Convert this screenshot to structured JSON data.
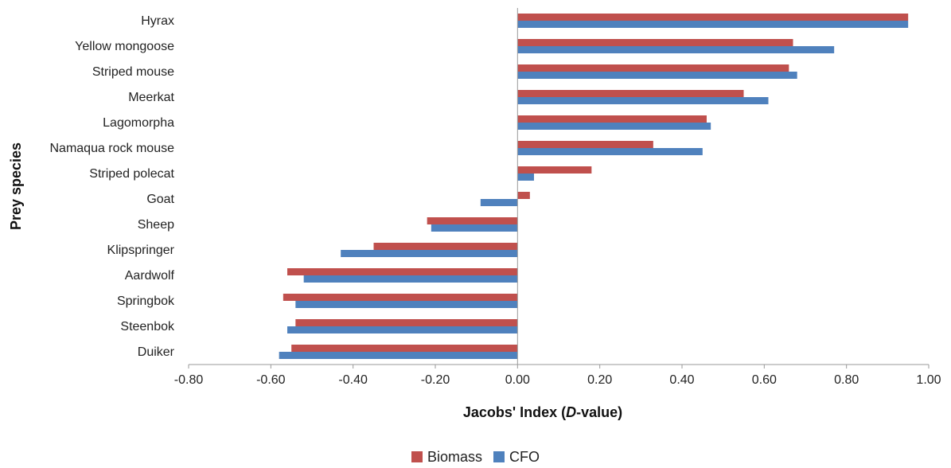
{
  "chart_data": {
    "type": "bar",
    "orientation": "horizontal",
    "categories": [
      "Hyrax",
      "Yellow mongoose",
      "Striped mouse",
      "Meerkat",
      "Lagomorpha",
      "Namaqua rock mouse",
      "Striped polecat",
      "Goat",
      "Sheep",
      "Klipspringer",
      "Aardwolf",
      "Springbok",
      "Steenbok",
      "Duiker"
    ],
    "series": [
      {
        "name": "Biomass",
        "color": "#c0504d",
        "values": [
          0.95,
          0.67,
          0.66,
          0.55,
          0.46,
          0.33,
          0.18,
          0.03,
          -0.22,
          -0.35,
          -0.56,
          -0.57,
          -0.54,
          -0.55
        ]
      },
      {
        "name": "CFO",
        "color": "#4f81bd",
        "values": [
          0.95,
          0.77,
          0.68,
          0.61,
          0.47,
          0.45,
          0.04,
          -0.09,
          -0.21,
          -0.43,
          -0.52,
          -0.54,
          -0.56,
          -0.58
        ]
      }
    ],
    "xlabel": "Jacobs' Index (D-value)",
    "xlabel_parts": [
      "Jacobs' Index (",
      "D",
      "-value)"
    ],
    "ylabel": "Prey species",
    "xlim": [
      -0.8,
      1.0
    ],
    "xticks": [
      "-0.80",
      "-0.60",
      "-0.40",
      "-0.20",
      "0.00",
      "0.20",
      "0.40",
      "0.60",
      "0.80",
      "1.00"
    ],
    "grid": false,
    "legend_position": "bottom"
  }
}
